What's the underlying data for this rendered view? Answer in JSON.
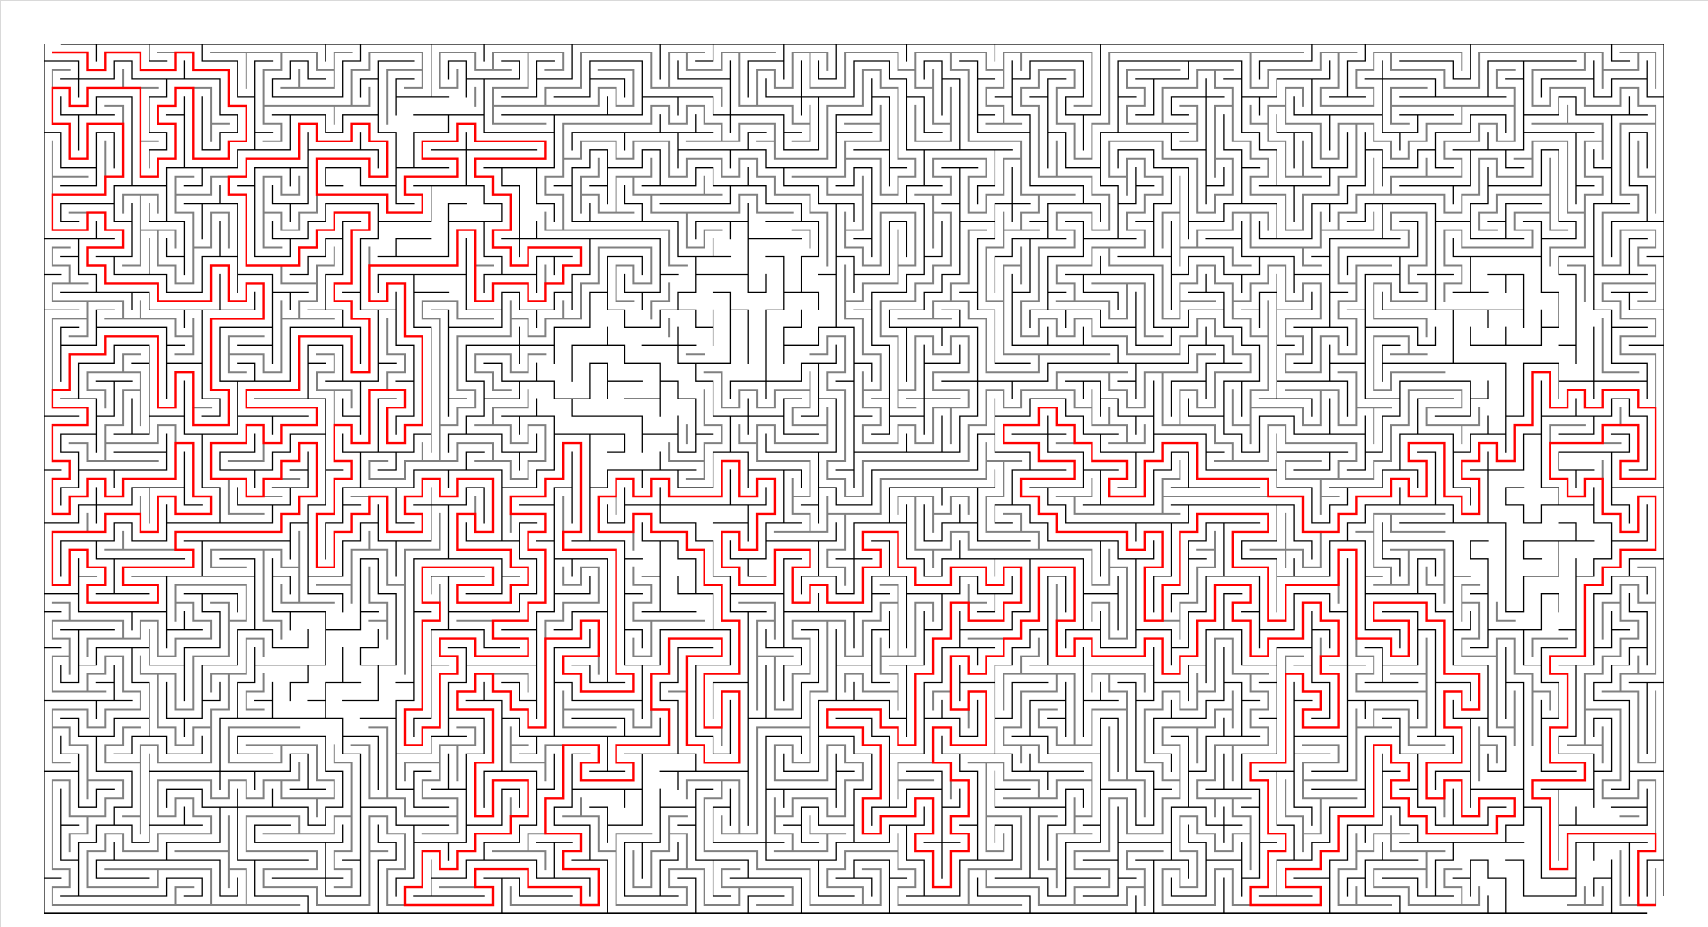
{
  "maze": {
    "cols": 92,
    "rows": 49,
    "seed": 48271,
    "colors": {
      "wall": "#000000",
      "visited_path": "#808080",
      "solution_path": "#ff0000",
      "background": "#ffffff"
    },
    "start": {
      "col": 0,
      "row": 0
    },
    "goal": {
      "col": 91,
      "row": 48
    }
  }
}
